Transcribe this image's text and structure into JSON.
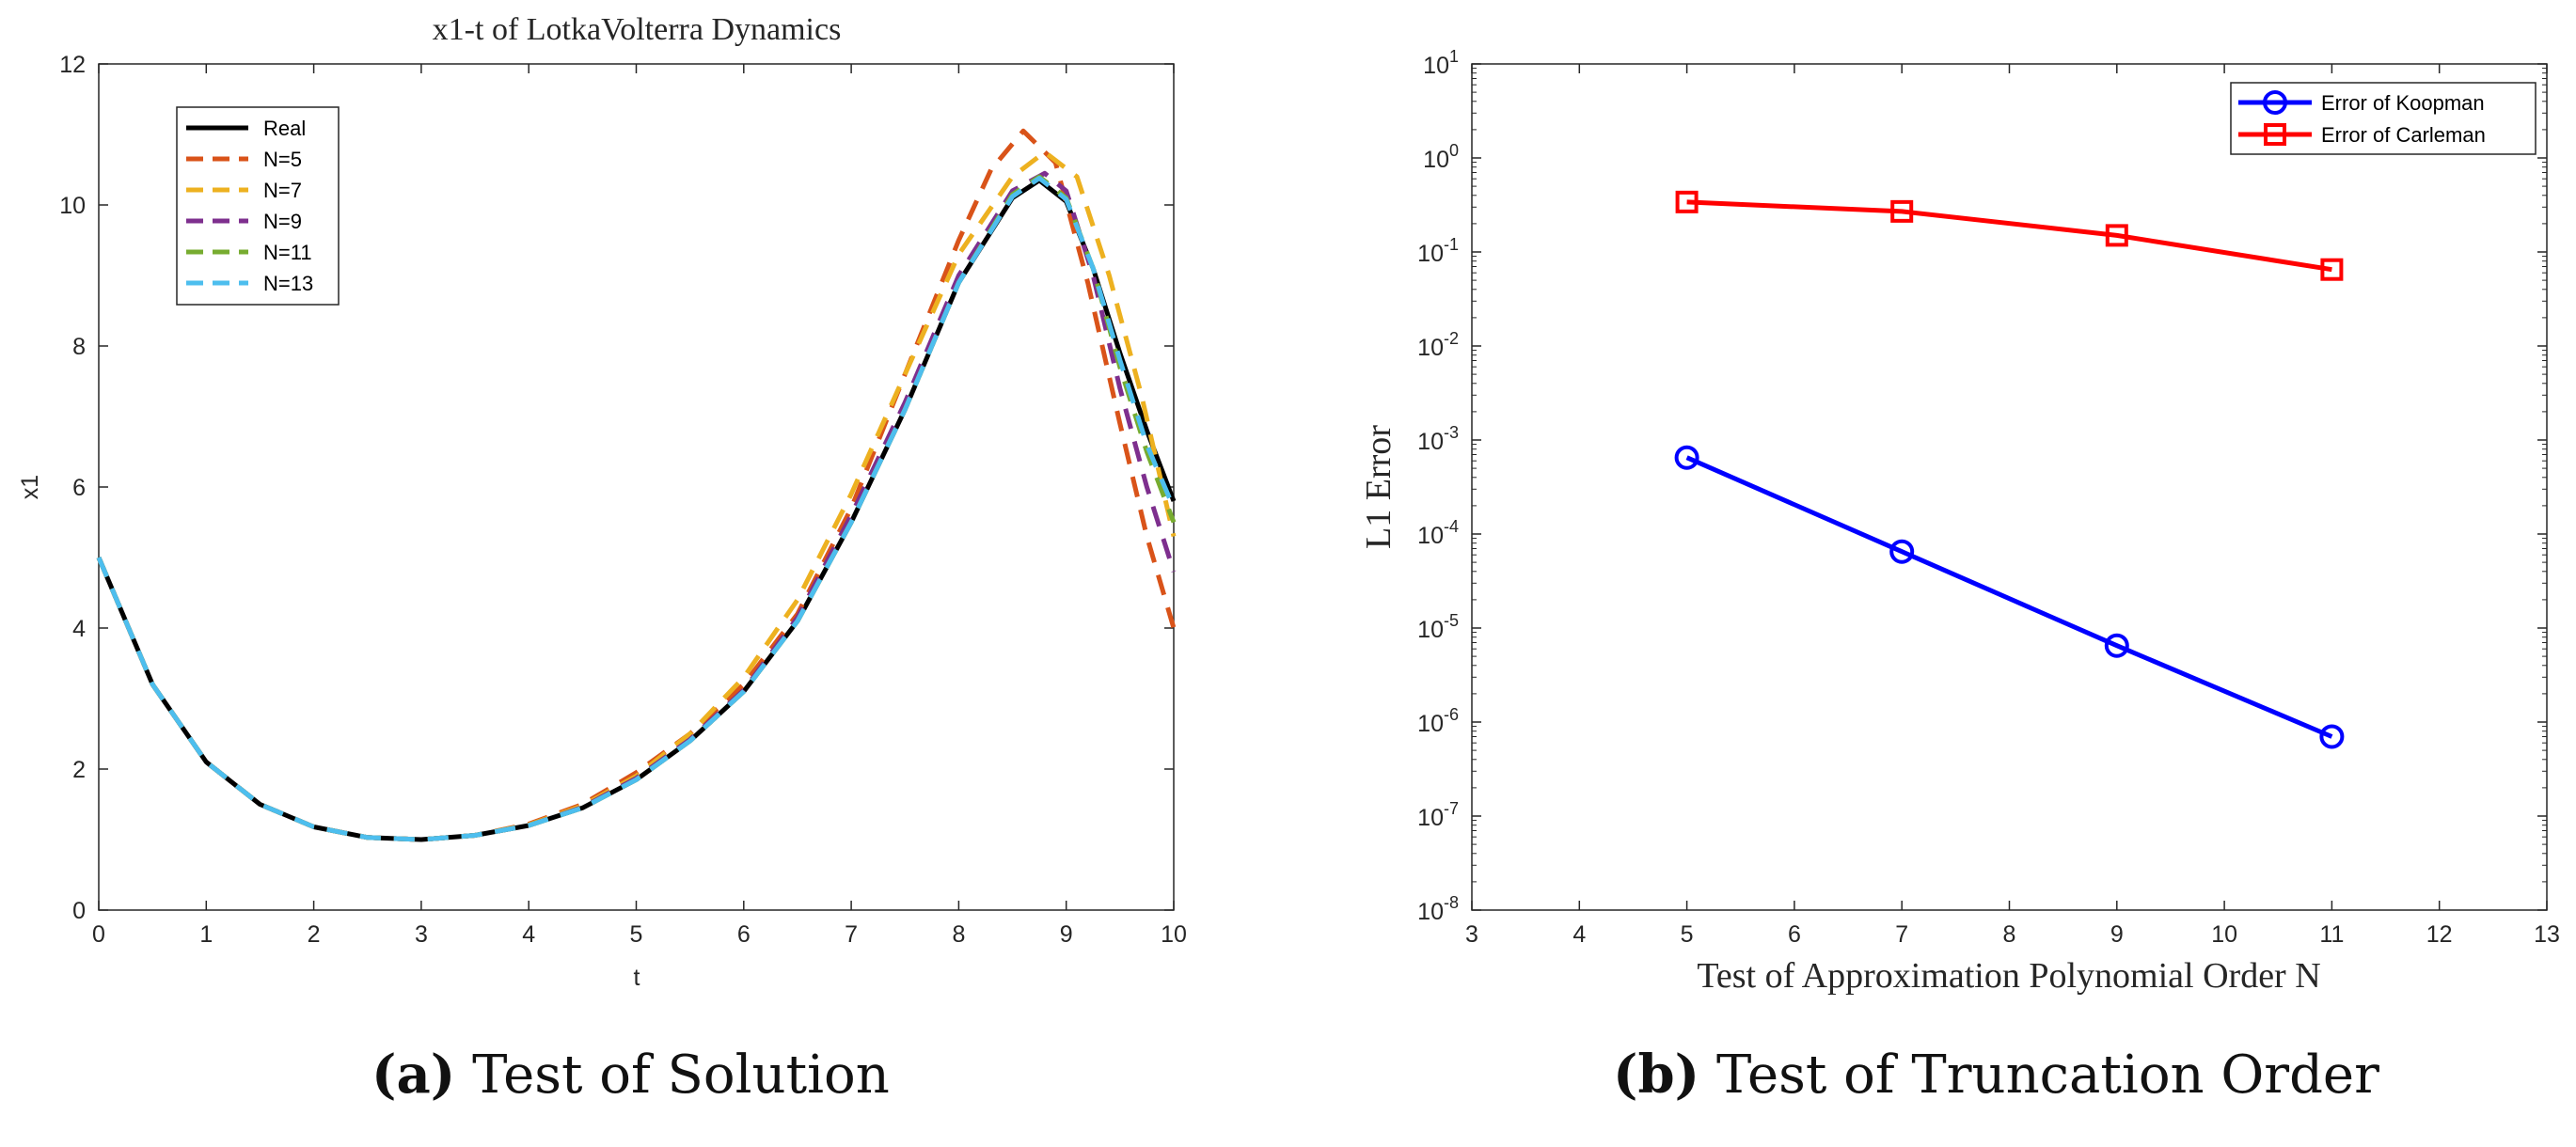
{
  "chart_data": [
    {
      "type": "line",
      "title": "x1-t of LotkaVolterra Dynamics",
      "xlabel": "t",
      "ylabel": "x1",
      "xlim": [
        0,
        10
      ],
      "ylim": [
        0,
        12
      ],
      "xticks": [
        "0",
        "1",
        "2",
        "3",
        "4",
        "5",
        "6",
        "7",
        "8",
        "9",
        "10"
      ],
      "yticks": [
        "0",
        "2",
        "4",
        "6",
        "8",
        "10",
        "12"
      ],
      "legend_position": "top-left",
      "series": [
        {
          "name": "Real",
          "color": "#000000",
          "style": "solid",
          "x": [
            0,
            0.5,
            1,
            1.5,
            2,
            2.5,
            3,
            3.5,
            4,
            4.5,
            5,
            5.5,
            6,
            6.5,
            7,
            7.5,
            8,
            8.5,
            8.75,
            9,
            9.25,
            9.5,
            9.75,
            10
          ],
          "y": [
            5,
            3.2,
            2.1,
            1.5,
            1.18,
            1.03,
            1.0,
            1.06,
            1.2,
            1.45,
            1.85,
            2.4,
            3.1,
            4.1,
            5.5,
            7.1,
            8.9,
            10.1,
            10.35,
            10.05,
            9.1,
            7.9,
            6.8,
            5.8
          ]
        },
        {
          "name": "N=5",
          "color": "#D95319",
          "style": "dashed",
          "x": [
            0,
            0.5,
            1,
            1.5,
            2,
            2.5,
            3,
            3.5,
            4,
            4.5,
            5,
            5.5,
            6,
            6.5,
            7,
            7.5,
            8,
            8.3,
            8.6,
            8.9,
            9.2,
            9.5,
            9.75,
            10
          ],
          "y": [
            5,
            3.2,
            2.1,
            1.5,
            1.18,
            1.03,
            1.0,
            1.06,
            1.22,
            1.5,
            1.95,
            2.5,
            3.2,
            4.2,
            5.7,
            7.6,
            9.5,
            10.5,
            11.05,
            10.6,
            8.9,
            6.9,
            5.3,
            4.0
          ]
        },
        {
          "name": "N=7",
          "color": "#EDB120",
          "style": "dashed",
          "x": [
            0,
            0.5,
            1,
            1.5,
            2,
            2.5,
            3,
            3.5,
            4,
            4.5,
            5,
            5.5,
            6,
            6.5,
            7,
            7.5,
            8,
            8.5,
            8.8,
            9.1,
            9.4,
            9.7,
            10
          ],
          "y": [
            5,
            3.2,
            2.1,
            1.5,
            1.18,
            1.03,
            1.0,
            1.06,
            1.21,
            1.48,
            1.9,
            2.5,
            3.3,
            4.4,
            5.9,
            7.6,
            9.3,
            10.4,
            10.75,
            10.4,
            9.0,
            7.3,
            5.3
          ]
        },
        {
          "name": "N=9",
          "color": "#7E2F8E",
          "style": "dashed",
          "x": [
            0,
            0.5,
            1,
            1.5,
            2,
            2.5,
            3,
            3.5,
            4,
            4.5,
            5,
            5.5,
            6,
            6.5,
            7,
            7.5,
            8,
            8.5,
            8.8,
            9.0,
            9.25,
            9.5,
            9.75,
            10
          ],
          "y": [
            5,
            3.2,
            2.1,
            1.5,
            1.18,
            1.03,
            1.0,
            1.06,
            1.2,
            1.46,
            1.87,
            2.42,
            3.12,
            4.15,
            5.6,
            7.2,
            9.0,
            10.2,
            10.45,
            10.2,
            9.0,
            7.4,
            6.0,
            4.8
          ]
        },
        {
          "name": "N=11",
          "color": "#77AC30",
          "style": "dashed",
          "x": [
            0,
            0.5,
            1,
            1.5,
            2,
            2.5,
            3,
            3.5,
            4,
            4.5,
            5,
            5.5,
            6,
            6.5,
            7,
            7.5,
            8,
            8.5,
            8.75,
            9,
            9.25,
            9.5,
            9.75,
            10
          ],
          "y": [
            5,
            3.2,
            2.1,
            1.5,
            1.18,
            1.03,
            1.0,
            1.06,
            1.2,
            1.45,
            1.85,
            2.4,
            3.1,
            4.1,
            5.5,
            7.1,
            8.9,
            10.15,
            10.4,
            10.1,
            9.1,
            7.7,
            6.5,
            5.5
          ]
        },
        {
          "name": "N=13",
          "color": "#4DBEEE",
          "style": "dashed",
          "x": [
            0,
            0.5,
            1,
            1.5,
            2,
            2.5,
            3,
            3.5,
            4,
            4.5,
            5,
            5.5,
            6,
            6.5,
            7,
            7.5,
            8,
            8.5,
            8.75,
            9,
            9.25,
            9.5,
            9.75,
            10
          ],
          "y": [
            5,
            3.2,
            2.1,
            1.5,
            1.18,
            1.03,
            1.0,
            1.06,
            1.2,
            1.45,
            1.85,
            2.4,
            3.1,
            4.1,
            5.5,
            7.1,
            8.9,
            10.12,
            10.38,
            10.08,
            9.1,
            7.8,
            6.6,
            5.7
          ]
        }
      ]
    },
    {
      "type": "line",
      "title": "",
      "xlabel": "Test of Approximation Polynomial Order N",
      "ylabel": "L1 Error",
      "xlim": [
        3,
        13
      ],
      "yscale": "log",
      "ylim_exp": [
        -8,
        1
      ],
      "xticks": [
        "3",
        "4",
        "5",
        "6",
        "7",
        "8",
        "9",
        "10",
        "11",
        "12",
        "13"
      ],
      "yticks": [
        {
          "base": "10",
          "exp": "-8"
        },
        {
          "base": "10",
          "exp": "-7"
        },
        {
          "base": "10",
          "exp": "-6"
        },
        {
          "base": "10",
          "exp": "-5"
        },
        {
          "base": "10",
          "exp": "-4"
        },
        {
          "base": "10",
          "exp": "-3"
        },
        {
          "base": "10",
          "exp": "-2"
        },
        {
          "base": "10",
          "exp": "-1"
        },
        {
          "base": "10",
          "exp": "0"
        },
        {
          "base": "10",
          "exp": "1"
        }
      ],
      "legend_position": "top-right",
      "series": [
        {
          "name": "Error of Koopman",
          "color": "#0000FF",
          "marker": "circle",
          "x": [
            5,
            7,
            9,
            11
          ],
          "y": [
            0.00065,
            6.5e-05,
            6.5e-06,
            7e-07
          ]
        },
        {
          "name": "Error of Carleman",
          "color": "#FF0000",
          "marker": "square",
          "x": [
            5,
            7,
            9,
            11
          ],
          "y": [
            0.34,
            0.27,
            0.15,
            0.065
          ]
        }
      ]
    }
  ],
  "captions": [
    {
      "letter": "(a)",
      "text": "Test of Solution"
    },
    {
      "letter": "(b)",
      "text": "Test of Truncation Order"
    }
  ]
}
